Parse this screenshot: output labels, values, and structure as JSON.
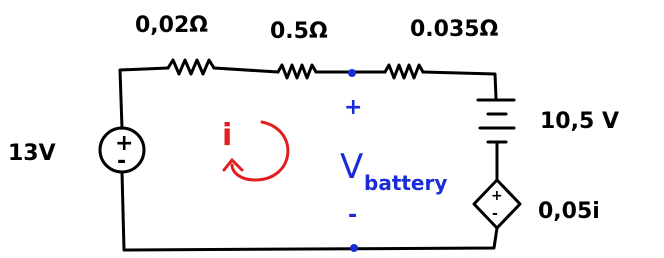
{
  "resistors": [
    {
      "label": "0,02Ω"
    },
    {
      "label": "0.5Ω"
    },
    {
      "label": "0.035Ω"
    }
  ],
  "source": {
    "label": "13V",
    "plus": "+",
    "minus": "-"
  },
  "battery": {
    "label": "10,5 V"
  },
  "dependent_source": {
    "label": "0,05i",
    "plus": "+",
    "minus": "-"
  },
  "current": {
    "label": "i"
  },
  "measurement": {
    "symbol": "V",
    "subscript": "battery",
    "plus": "+",
    "minus": "-"
  }
}
